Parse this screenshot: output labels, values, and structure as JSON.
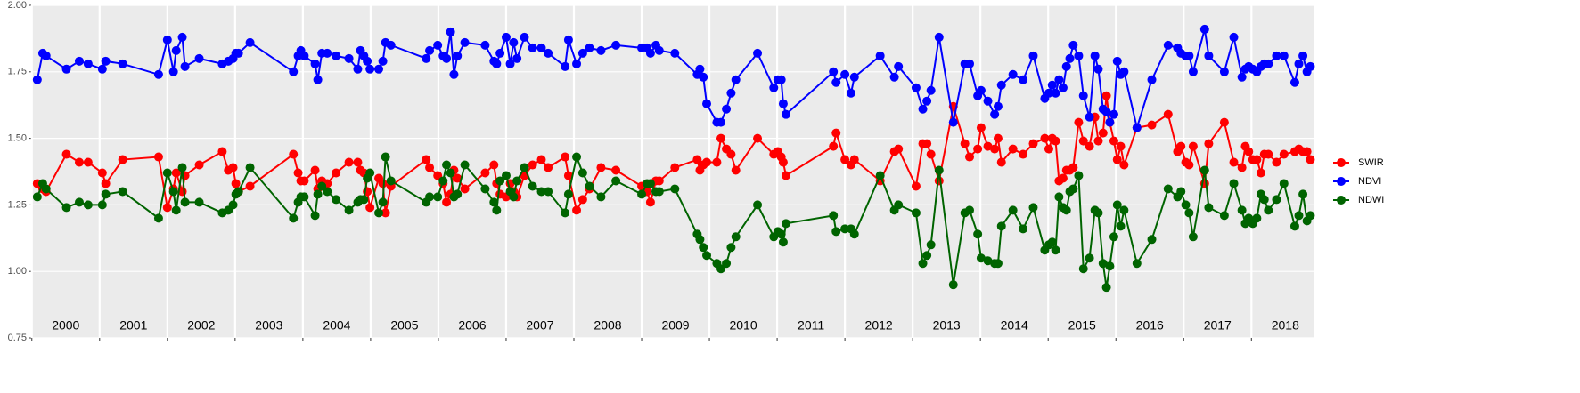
{
  "chart_data": {
    "type": "line",
    "x": [
      2000.08,
      2000.16,
      2000.21,
      2000.51,
      2000.7,
      2000.83,
      2001.04,
      2001.09,
      2001.34,
      2001.87,
      2002.0,
      2002.09,
      2002.13,
      2002.22,
      2002.26,
      2002.47,
      2002.81,
      2002.9,
      2002.97,
      2003.01,
      2003.05,
      2003.22,
      2003.86,
      2003.93,
      2003.97,
      2004.02,
      2004.18,
      2004.22,
      2004.28,
      2004.36,
      2004.49,
      2004.68,
      2004.81,
      2004.85,
      2004.9,
      2004.95,
      2004.99,
      2005.12,
      2005.18,
      2005.22,
      2005.3,
      2005.82,
      2005.87,
      2005.99,
      2006.07,
      2006.12,
      2006.18,
      2006.23,
      2006.28,
      2006.39,
      2006.69,
      2006.82,
      2006.86,
      2006.91,
      2007.0,
      2007.06,
      2007.11,
      2007.16,
      2007.27,
      2007.39,
      2007.52,
      2007.62,
      2007.87,
      2007.92,
      2008.04,
      2008.13,
      2008.23,
      2008.4,
      2008.62,
      2009.0,
      2009.08,
      2009.13,
      2009.21,
      2009.26,
      2009.49,
      2009.82,
      2009.86,
      2009.91,
      2009.96,
      2010.11,
      2010.17,
      2010.25,
      2010.32,
      2010.39,
      2010.71,
      2010.95,
      2011.01,
      2011.06,
      2011.09,
      2011.13,
      2011.83,
      2011.87,
      2012.0,
      2012.09,
      2012.14,
      2012.52,
      2012.73,
      2012.79,
      2013.05,
      2013.15,
      2013.21,
      2013.27,
      2013.39,
      2013.6,
      2013.77,
      2013.84,
      2013.96,
      2014.01,
      2014.11,
      2014.21,
      2014.26,
      2014.31,
      2014.48,
      2014.63,
      2014.78,
      2014.95,
      2015.01,
      2015.06,
      2015.11,
      2015.16,
      2015.22,
      2015.27,
      2015.32,
      2015.37,
      2015.45,
      2015.52,
      2015.61,
      2015.69,
      2015.74,
      2015.81,
      2015.86,
      2015.91,
      2015.97,
      2016.02,
      2016.07,
      2016.12,
      2016.31,
      2016.53,
      2016.77,
      2016.91,
      2016.96,
      2017.03,
      2017.08,
      2017.14,
      2017.31,
      2017.37,
      2017.6,
      2017.74,
      2017.86,
      2017.91,
      2017.96,
      2018.02,
      2018.08,
      2018.14,
      2018.19,
      2018.25,
      2018.37,
      2018.48,
      2018.64,
      2018.7,
      2018.76,
      2018.82,
      2018.87
    ],
    "series": [
      {
        "name": "SWIR",
        "color": "#ff0000",
        "values": [
          1.33,
          1.31,
          1.3,
          1.44,
          1.41,
          1.41,
          1.37,
          1.33,
          1.42,
          1.43,
          1.24,
          1.31,
          1.37,
          1.3,
          1.36,
          1.4,
          1.45,
          1.38,
          1.39,
          1.33,
          1.3,
          1.32,
          1.44,
          1.37,
          1.34,
          1.34,
          1.38,
          1.31,
          1.34,
          1.33,
          1.37,
          1.41,
          1.41,
          1.38,
          1.37,
          1.3,
          1.24,
          1.35,
          1.33,
          1.22,
          1.32,
          1.42,
          1.39,
          1.36,
          1.33,
          1.26,
          1.29,
          1.38,
          1.35,
          1.31,
          1.37,
          1.4,
          1.33,
          1.29,
          1.28,
          1.33,
          1.3,
          1.28,
          1.36,
          1.4,
          1.42,
          1.39,
          1.43,
          1.36,
          1.23,
          1.27,
          1.31,
          1.39,
          1.38,
          1.32,
          1.3,
          1.26,
          1.34,
          1.34,
          1.39,
          1.42,
          1.38,
          1.4,
          1.41,
          1.41,
          1.5,
          1.46,
          1.44,
          1.38,
          1.5,
          1.44,
          1.45,
          1.43,
          1.41,
          1.36,
          1.47,
          1.52,
          1.42,
          1.4,
          1.42,
          1.34,
          1.45,
          1.46,
          1.32,
          1.48,
          1.48,
          1.44,
          1.34,
          1.62,
          1.48,
          1.43,
          1.46,
          1.54,
          1.47,
          1.46,
          1.5,
          1.41,
          1.46,
          1.44,
          1.48,
          1.5,
          1.46,
          1.5,
          1.49,
          1.34,
          1.35,
          1.38,
          1.38,
          1.39,
          1.56,
          1.49,
          1.47,
          1.58,
          1.49,
          1.52,
          1.66,
          1.56,
          1.49,
          1.42,
          1.47,
          1.4,
          1.54,
          1.55,
          1.59,
          1.45,
          1.47,
          1.41,
          1.4,
          1.47,
          1.33,
          1.48,
          1.56,
          1.41,
          1.39,
          1.47,
          1.45,
          1.42,
          1.42,
          1.37,
          1.44,
          1.44,
          1.41,
          1.44,
          1.45,
          1.46,
          1.45,
          1.45,
          1.42
        ]
      },
      {
        "name": "NDVI",
        "color": "#0000ff",
        "values": [
          1.72,
          1.82,
          1.81,
          1.76,
          1.79,
          1.78,
          1.76,
          1.79,
          1.78,
          1.74,
          1.87,
          1.75,
          1.83,
          1.88,
          1.77,
          1.8,
          1.78,
          1.79,
          1.8,
          1.82,
          1.82,
          1.86,
          1.75,
          1.81,
          1.83,
          1.81,
          1.78,
          1.72,
          1.82,
          1.82,
          1.81,
          1.8,
          1.76,
          1.83,
          1.81,
          1.79,
          1.76,
          1.76,
          1.79,
          1.86,
          1.85,
          1.8,
          1.83,
          1.85,
          1.81,
          1.8,
          1.9,
          1.74,
          1.81,
          1.86,
          1.85,
          1.79,
          1.78,
          1.82,
          1.88,
          1.78,
          1.86,
          1.8,
          1.88,
          1.84,
          1.84,
          1.82,
          1.77,
          1.87,
          1.78,
          1.82,
          1.84,
          1.83,
          1.85,
          1.84,
          1.84,
          1.82,
          1.85,
          1.83,
          1.82,
          1.74,
          1.76,
          1.73,
          1.63,
          1.56,
          1.56,
          1.61,
          1.67,
          1.72,
          1.82,
          1.69,
          1.72,
          1.72,
          1.63,
          1.59,
          1.75,
          1.71,
          1.74,
          1.67,
          1.73,
          1.81,
          1.73,
          1.77,
          1.69,
          1.61,
          1.64,
          1.68,
          1.88,
          1.56,
          1.78,
          1.78,
          1.66,
          1.68,
          1.64,
          1.59,
          1.62,
          1.7,
          1.74,
          1.72,
          1.81,
          1.65,
          1.67,
          1.7,
          1.67,
          1.72,
          1.69,
          1.77,
          1.8,
          1.85,
          1.81,
          1.66,
          1.58,
          1.81,
          1.76,
          1.61,
          1.6,
          1.56,
          1.59,
          1.79,
          1.74,
          1.75,
          1.54,
          1.72,
          1.85,
          1.84,
          1.82,
          1.81,
          1.81,
          1.75,
          1.91,
          1.81,
          1.75,
          1.88,
          1.73,
          1.76,
          1.77,
          1.76,
          1.75,
          1.77,
          1.78,
          1.78,
          1.81,
          1.81,
          1.71,
          1.78,
          1.81,
          1.75,
          1.77
        ]
      },
      {
        "name": "NDWI",
        "color": "#006400",
        "values": [
          1.28,
          1.33,
          1.31,
          1.24,
          1.26,
          1.25,
          1.25,
          1.29,
          1.3,
          1.2,
          1.37,
          1.3,
          1.23,
          1.39,
          1.26,
          1.26,
          1.22,
          1.23,
          1.25,
          1.29,
          1.3,
          1.39,
          1.2,
          1.26,
          1.28,
          1.28,
          1.21,
          1.29,
          1.32,
          1.3,
          1.27,
          1.23,
          1.26,
          1.27,
          1.27,
          1.35,
          1.37,
          1.22,
          1.26,
          1.43,
          1.34,
          1.26,
          1.28,
          1.28,
          1.34,
          1.4,
          1.37,
          1.28,
          1.29,
          1.4,
          1.31,
          1.26,
          1.23,
          1.34,
          1.36,
          1.3,
          1.28,
          1.34,
          1.39,
          1.32,
          1.3,
          1.3,
          1.22,
          1.29,
          1.43,
          1.37,
          1.32,
          1.28,
          1.34,
          1.29,
          1.33,
          1.33,
          1.3,
          1.3,
          1.31,
          1.14,
          1.12,
          1.09,
          1.06,
          1.03,
          1.01,
          1.03,
          1.09,
          1.13,
          1.25,
          1.13,
          1.15,
          1.14,
          1.11,
          1.18,
          1.21,
          1.15,
          1.16,
          1.16,
          1.14,
          1.36,
          1.23,
          1.25,
          1.22,
          1.03,
          1.06,
          1.1,
          1.38,
          0.95,
          1.22,
          1.23,
          1.14,
          1.05,
          1.04,
          1.03,
          1.03,
          1.17,
          1.23,
          1.16,
          1.24,
          1.08,
          1.1,
          1.11,
          1.08,
          1.28,
          1.24,
          1.23,
          1.3,
          1.31,
          1.36,
          1.01,
          1.05,
          1.23,
          1.22,
          1.03,
          0.94,
          1.02,
          1.13,
          1.25,
          1.17,
          1.23,
          1.03,
          1.12,
          1.31,
          1.28,
          1.3,
          1.25,
          1.22,
          1.13,
          1.38,
          1.24,
          1.21,
          1.33,
          1.23,
          1.18,
          1.2,
          1.18,
          1.2,
          1.29,
          1.27,
          1.23,
          1.27,
          1.33,
          1.17,
          1.21,
          1.29,
          1.19,
          1.21
        ]
      }
    ],
    "xlim": [
      1999.99,
      2018.93
    ],
    "xticks": [
      2000,
      2001,
      2002,
      2003,
      2004,
      2005,
      2006,
      2007,
      2008,
      2009,
      2010,
      2011,
      2012,
      2013,
      2014,
      2015,
      2016,
      2017,
      2018
    ],
    "year_labels": [
      "2000",
      "2001",
      "2002",
      "2003",
      "2004",
      "2005",
      "2006",
      "2007",
      "2008",
      "2009",
      "2010",
      "2011",
      "2012",
      "2013",
      "2014",
      "2015",
      "2016",
      "2017",
      "2018"
    ],
    "ylim": [
      0.75,
      2.0
    ],
    "yticks": [
      0.75,
      {
        "value": 1.0,
        "label": "1.00"
      },
      1.25,
      {
        "value": 1.5,
        "label": "1.50"
      },
      1.75,
      {
        "value": 2.0,
        "label": "2.00"
      }
    ],
    "grid": true,
    "legend": "right"
  }
}
